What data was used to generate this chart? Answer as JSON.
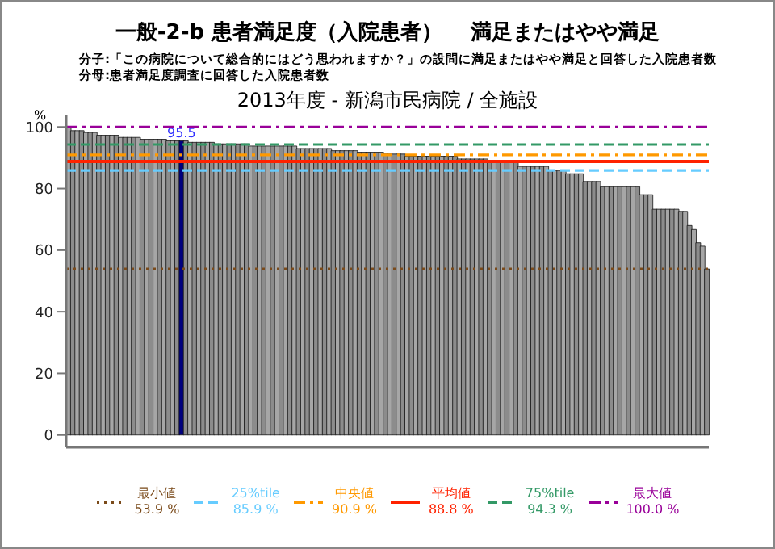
{
  "chart_data": {
    "type": "bar",
    "title": "一般-2-b 患者満足度（入院患者）　 満足またはやや満足",
    "subtitle": "2013年度 - 新潟市民病院 / 全施設",
    "annotations": [
      "分子:「この病院について総合的にはどう思われますか？」の設問に満足またはやや満足と回答した入院患者数",
      "分母:患者満足度調査に回答した入院患者数"
    ],
    "ylabel": "%",
    "categories": [
      null,
      null,
      null,
      null,
      null,
      null,
      null,
      null,
      null,
      null,
      null,
      null,
      null,
      null,
      null,
      null,
      null,
      null,
      null,
      null,
      null,
      null,
      null,
      null,
      null,
      null,
      null,
      null,
      null,
      null,
      null,
      null,
      null,
      null,
      null,
      null,
      null,
      null,
      null,
      null,
      null,
      null,
      null,
      null,
      null,
      null,
      null,
      null,
      null,
      null,
      null,
      null,
      null,
      null,
      null,
      null,
      null,
      null,
      null,
      null,
      null,
      null,
      null,
      null,
      null,
      null,
      null,
      null,
      null,
      null,
      null,
      null,
      null,
      null,
      null,
      null,
      null,
      null,
      null,
      null,
      null,
      null,
      null,
      null,
      null,
      null,
      null,
      null,
      null,
      null,
      null,
      null,
      null,
      null,
      null,
      null,
      null,
      null,
      null,
      null,
      null,
      null,
      null,
      null,
      null,
      null,
      null,
      null,
      null,
      null,
      null,
      null,
      null,
      null,
      null,
      null,
      null,
      null,
      null,
      null,
      null,
      null,
      null,
      null,
      null,
      null,
      null,
      null,
      null,
      null,
      null,
      null,
      null,
      null,
      null,
      null,
      null,
      null,
      null,
      null,
      null,
      null,
      null,
      null,
      null,
      null,
      null,
      null
    ],
    "values": [
      100,
      98.8,
      98.8,
      98.8,
      98.2,
      98.2,
      98.2,
      97.3,
      97.3,
      97.3,
      97.3,
      97.3,
      96.6,
      96.6,
      96.6,
      96.6,
      96.6,
      96,
      96,
      96,
      96,
      96,
      96,
      95.5,
      95.5,
      95.5,
      95.5,
      95.5,
      95,
      95,
      95,
      95,
      95,
      95,
      94.5,
      94.5,
      94.5,
      94.5,
      94.5,
      94.5,
      94.5,
      94.5,
      93.8,
      93.8,
      93.8,
      93.8,
      93.8,
      93.8,
      93.8,
      93.8,
      93.8,
      93.8,
      93.8,
      93,
      93,
      93,
      93,
      93,
      93,
      93,
      93,
      92.3,
      92.3,
      92.3,
      92.3,
      92.3,
      92.3,
      91.8,
      91.8,
      91.8,
      91.8,
      91.8,
      91.8,
      91.2,
      91.2,
      91.2,
      91.2,
      91.2,
      90.5,
      90.5,
      90.5,
      90.5,
      90.5,
      90.5,
      90.5,
      90.5,
      90.5,
      90.5,
      90.5,
      90.5,
      89.6,
      89.6,
      89.6,
      89.6,
      89.6,
      89.6,
      89.6,
      88.6,
      88.6,
      88.6,
      88.6,
      88.6,
      88.6,
      88.6,
      87.2,
      87.2,
      87.2,
      87.2,
      87.2,
      87.2,
      87.2,
      85.9,
      85.9,
      85.9,
      85.9,
      84.8,
      84.8,
      84.8,
      84.8,
      82.3,
      82.3,
      82.3,
      82.3,
      80.6,
      80.6,
      80.6,
      80.6,
      80.6,
      80.6,
      80.6,
      80.6,
      80.6,
      78,
      78,
      78,
      73.3,
      73.3,
      73.3,
      73.3,
      73.3,
      73.3,
      72.6,
      72.6,
      68,
      66.7,
      62.4,
      61.3,
      53.9
    ],
    "colors": [
      "#a6a6a6",
      "#8c8c8c",
      "#a6a6a6",
      "#8c8c8c",
      "#a6a6a6",
      "#8c8c8c",
      "#a6a6a6",
      "#8c8c8c",
      "#a6a6a6",
      "#8c8c8c",
      "#a6a6a6",
      "#8c8c8c",
      "#a6a6a6",
      "#8c8c8c",
      "#a6a6a6",
      "#8c8c8c",
      "#a6a6a6",
      "#8c8c8c",
      "#a6a6a6",
      "#8c8c8c",
      "#a6a6a6",
      "#8c8c8c",
      "#a6a6a6",
      "#8c8c8c",
      "#a6a6a6",
      "#8c8c8c",
      "#000080",
      "#8c8c8c",
      "#a6a6a6",
      "#8c8c8c",
      "#a6a6a6",
      "#8c8c8c",
      "#a6a6a6",
      "#8c8c8c",
      "#a6a6a6",
      "#8c8c8c",
      "#a6a6a6",
      "#8c8c8c",
      "#a6a6a6",
      "#8c8c8c",
      "#a6a6a6",
      "#8c8c8c",
      "#a6a6a6",
      "#8c8c8c",
      "#a6a6a6",
      "#8c8c8c",
      "#a6a6a6",
      "#8c8c8c",
      "#a6a6a6",
      "#8c8c8c",
      "#a6a6a6",
      "#8c8c8c",
      "#a6a6a6",
      "#8c8c8c",
      "#a6a6a6",
      "#8c8c8c",
      "#a6a6a6",
      "#8c8c8c",
      "#a6a6a6",
      "#8c8c8c",
      "#a6a6a6",
      "#8c8c8c",
      "#a6a6a6",
      "#8c8c8c",
      "#a6a6a6",
      "#8c8c8c",
      "#a6a6a6",
      "#8c8c8c",
      "#a6a6a6",
      "#8c8c8c",
      "#a6a6a6",
      "#8c8c8c",
      "#a6a6a6",
      "#8c8c8c",
      "#a6a6a6",
      "#8c8c8c",
      "#a6a6a6",
      "#8c8c8c",
      "#a6a6a6",
      "#8c8c8c",
      "#a6a6a6",
      "#8c8c8c",
      "#a6a6a6",
      "#8c8c8c",
      "#a6a6a6",
      "#8c8c8c",
      "#a6a6a6",
      "#8c8c8c",
      "#a6a6a6",
      "#8c8c8c",
      "#a6a6a6",
      "#8c8c8c",
      "#a6a6a6",
      "#8c8c8c",
      "#a6a6a6",
      "#8c8c8c",
      "#a6a6a6",
      "#8c8c8c",
      "#a6a6a6",
      "#8c8c8c",
      "#a6a6a6",
      "#8c8c8c",
      "#a6a6a6",
      "#8c8c8c",
      "#a6a6a6",
      "#8c8c8c",
      "#a6a6a6",
      "#8c8c8c",
      "#a6a6a6",
      "#8c8c8c",
      "#a6a6a6",
      "#8c8c8c",
      "#a6a6a6",
      "#8c8c8c",
      "#a6a6a6",
      "#8c8c8c",
      "#a6a6a6",
      "#8c8c8c",
      "#a6a6a6",
      "#8c8c8c",
      "#a6a6a6",
      "#8c8c8c",
      "#a6a6a6",
      "#8c8c8c",
      "#a6a6a6",
      "#8c8c8c",
      "#a6a6a6",
      "#8c8c8c",
      "#a6a6a6",
      "#8c8c8c",
      "#a6a6a6",
      "#8c8c8c",
      "#a6a6a6",
      "#8c8c8c",
      "#a6a6a6",
      "#8c8c8c",
      "#a6a6a6",
      "#8c8c8c",
      "#a6a6a6",
      "#8c8c8c",
      "#a6a6a6",
      "#8c8c8c",
      "#a6a6a6",
      "#8c8c8c",
      "#a6a6a6",
      "#8c8c8c",
      "#a6a6a6",
      "#8c8c8c"
    ],
    "value_labels": [
      null,
      null,
      null,
      null,
      null,
      null,
      null,
      null,
      null,
      null,
      null,
      null,
      null,
      null,
      null,
      null,
      null,
      null,
      null,
      null,
      null,
      null,
      null,
      null,
      null,
      null,
      "95.5",
      null,
      null,
      null,
      null,
      null,
      null,
      null,
      null,
      null,
      null,
      null,
      null,
      null,
      null,
      null,
      null,
      null,
      null,
      null,
      null,
      null,
      null,
      null,
      null,
      null,
      null,
      null,
      null,
      null,
      null,
      null,
      null,
      null,
      null,
      null,
      null,
      null,
      null,
      null,
      null,
      null,
      null,
      null,
      null,
      null,
      null,
      null,
      null,
      null,
      null,
      null,
      null,
      null,
      null,
      null,
      null,
      null,
      null,
      null,
      null,
      null,
      null,
      null,
      null,
      null,
      null,
      null,
      null,
      null,
      null,
      null,
      null,
      null,
      null,
      null,
      null,
      null,
      null,
      null,
      null,
      null,
      null,
      null,
      null,
      null,
      null,
      null,
      null,
      null,
      null,
      null,
      null,
      null,
      null,
      null,
      null,
      null,
      null,
      null,
      null,
      null,
      null,
      null,
      null,
      null,
      null,
      null,
      null,
      null,
      null,
      null,
      null,
      null,
      null,
      null,
      null,
      null,
      null,
      null,
      null,
      null
    ],
    "ylim": [
      -4,
      104
    ],
    "yticks": [
      0,
      20,
      40,
      60,
      80,
      100
    ],
    "legend": "bottom",
    "ref_lines": [
      {
        "axis": "y",
        "value": 53.9,
        "label": "最小値\n53.9 %",
        "color": "#7a4a1a",
        "line_style": "dotted"
      },
      {
        "axis": "y",
        "value": 85.9,
        "label": "25%tile\n85.9 %",
        "color": "#66ccff",
        "line_style": "dashed"
      },
      {
        "axis": "y",
        "value": 90.9,
        "label": "中央値\n90.9 %",
        "color": "#ff9900",
        "line_style": "dashdot"
      },
      {
        "axis": "y",
        "value": 88.8,
        "label": "平均値\n88.8 %",
        "color": "#ff2200",
        "line_style": "solid"
      },
      {
        "axis": "y",
        "value": 94.3,
        "label": "75%tile\n94.3 %",
        "color": "#339966",
        "line_style": "dashed"
      },
      {
        "axis": "y",
        "value": 100.0,
        "label": "最大値\n100.0 %",
        "color": "#990099",
        "line_style": "dashdot"
      }
    ]
  }
}
